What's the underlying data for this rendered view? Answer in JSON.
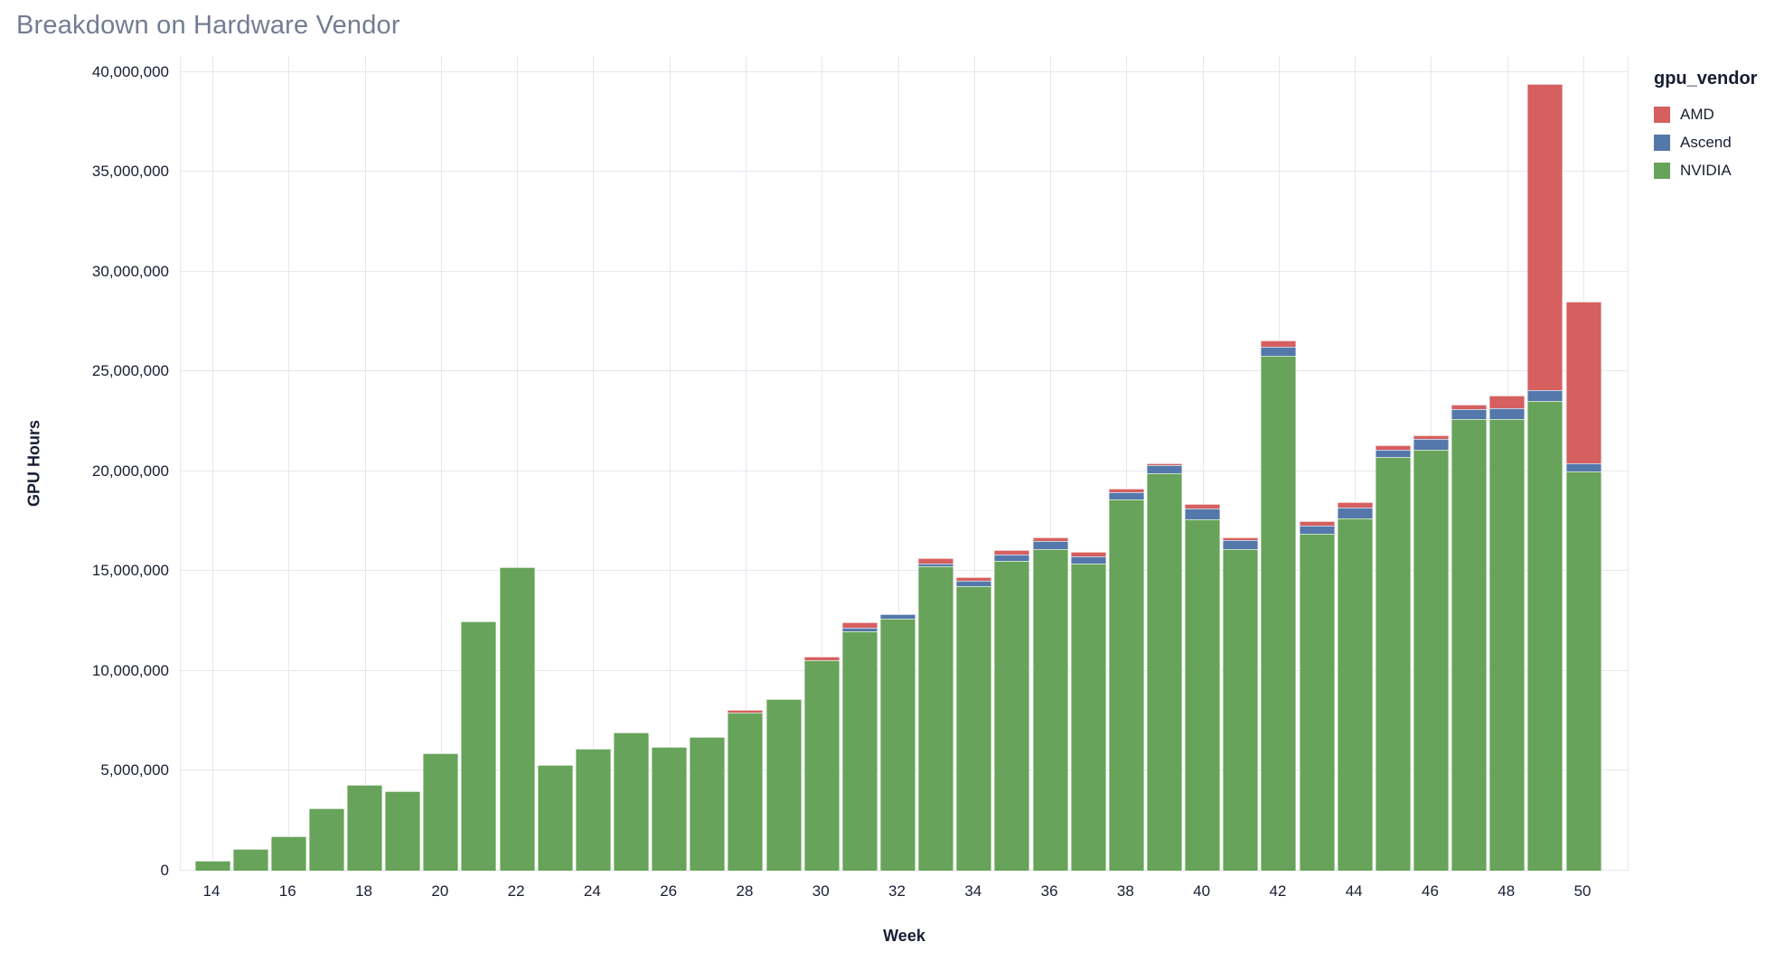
{
  "page": {
    "title": "Breakdown on Hardware Vendor"
  },
  "chart_data": {
    "type": "bar",
    "stacked": true,
    "title": "Breakdown on Hardware Vendor",
    "xlabel": "Week",
    "ylabel": "GPU Hours",
    "grid": true,
    "legend": {
      "title": "gpu_vendor",
      "position": "right",
      "entries": [
        "AMD",
        "Ascend",
        "NVIDIA"
      ]
    },
    "colors": {
      "AMD": "#d65f5f",
      "Ascend": "#5578ab",
      "NVIDIA": "#67a35a"
    },
    "x": [
      14,
      15,
      16,
      17,
      18,
      19,
      20,
      21,
      22,
      23,
      24,
      25,
      26,
      27,
      28,
      29,
      30,
      31,
      32,
      33,
      34,
      35,
      36,
      37,
      38,
      39,
      40,
      41,
      42,
      43,
      44,
      45,
      46,
      47,
      48,
      49,
      50
    ],
    "x_ticks": [
      14,
      16,
      18,
      20,
      22,
      24,
      26,
      28,
      30,
      32,
      34,
      36,
      38,
      40,
      42,
      44,
      46,
      48,
      50
    ],
    "y_ticks": [
      0,
      5000000,
      10000000,
      15000000,
      20000000,
      25000000,
      30000000,
      35000000,
      40000000
    ],
    "y_tick_labels": [
      "0",
      "5,000,000",
      "10,000,000",
      "15,000,000",
      "20,000,000",
      "25,000,000",
      "30,000,000",
      "35,000,000",
      "40,000,000"
    ],
    "ylim": [
      0,
      40800000
    ],
    "stack_order": [
      "NVIDIA",
      "Ascend",
      "AMD"
    ],
    "series": [
      {
        "name": "AMD",
        "color": "#d65f5f",
        "values": [
          0,
          0,
          0,
          0,
          0,
          0,
          0,
          0,
          0,
          0,
          0,
          0,
          0,
          0,
          150000,
          0,
          150000,
          300000,
          0,
          250000,
          200000,
          200000,
          200000,
          200000,
          200000,
          100000,
          200000,
          150000,
          300000,
          200000,
          250000,
          200000,
          200000,
          250000,
          650000,
          15350000,
          8100000
        ]
      },
      {
        "name": "Ascend",
        "color": "#5578ab",
        "values": [
          0,
          0,
          0,
          0,
          0,
          0,
          0,
          0,
          0,
          0,
          0,
          0,
          0,
          0,
          0,
          0,
          0,
          150000,
          250000,
          150000,
          250000,
          350000,
          400000,
          350000,
          350000,
          400000,
          550000,
          450000,
          450000,
          450000,
          550000,
          400000,
          500000,
          500000,
          550000,
          550000,
          400000
        ]
      },
      {
        "name": "NVIDIA",
        "color": "#67a35a",
        "values": [
          500000,
          1100000,
          1700000,
          3100000,
          4300000,
          4000000,
          5900000,
          12500000,
          15200000,
          5300000,
          6100000,
          6900000,
          6200000,
          6700000,
          7900000,
          8600000,
          10550000,
          12000000,
          12600000,
          15250000,
          14250000,
          15500000,
          16100000,
          15400000,
          18600000,
          19900000,
          17600000,
          16100000,
          25800000,
          16850000,
          17650000,
          20700000,
          21100000,
          22600000,
          22600000,
          23500000,
          20000000
        ]
      }
    ]
  }
}
